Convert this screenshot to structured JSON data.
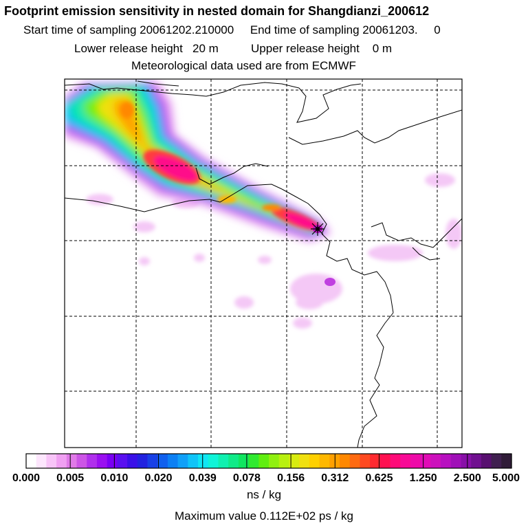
{
  "header": {
    "title": "Footprint emission sensitivity in nested domain for Shangdianzi_200612",
    "line2": "Start time of sampling 20061202.210000     End time of sampling 20061203.     0",
    "line3": "Lower release height   20 m          Upper release height    0 m",
    "line4": "Meteorological data used are from ECMWF"
  },
  "colorbar": {
    "labels": [
      "0.000",
      "0.005",
      "0.010",
      "0.020",
      "0.039",
      "0.078",
      "0.156",
      "0.312",
      "0.625",
      "1.250",
      "2.500",
      "5.000"
    ],
    "colors": [
      "#ffffff",
      "#fde6fd",
      "#f8c4f8",
      "#f0a0f2",
      "#e07ae8",
      "#cc55e6",
      "#b030ec",
      "#9a10f0",
      "#7a00f4",
      "#5a10f0",
      "#3a10e8",
      "#2222e0",
      "#1840e6",
      "#1060ee",
      "#0c80f4",
      "#10a0f8",
      "#10c4f8",
      "#10e6f4",
      "#10f4d8",
      "#10f0b0",
      "#10ea88",
      "#10e660",
      "#30ea30",
      "#60ee10",
      "#90f010",
      "#b8f010",
      "#d8ec10",
      "#f0e010",
      "#ffd000",
      "#ffb800",
      "#ffa000",
      "#ff8800",
      "#ff6a10",
      "#ff4a20",
      "#ff2a30",
      "#ff1050",
      "#ff0a78",
      "#f80a96",
      "#ee0aa8",
      "#e00cb6",
      "#cc10bc",
      "#b810c0",
      "#a010b8",
      "#8810a8",
      "#701090",
      "#581070",
      "#402050",
      "#301c38"
    ],
    "units": "ns / kg"
  },
  "footer": {
    "max_value": "Maximum value  0.112E+02 ps / kg"
  },
  "map": {
    "receptor": "Shangdianzi",
    "frame_color": "#000000",
    "gridlines": "dashed"
  }
}
